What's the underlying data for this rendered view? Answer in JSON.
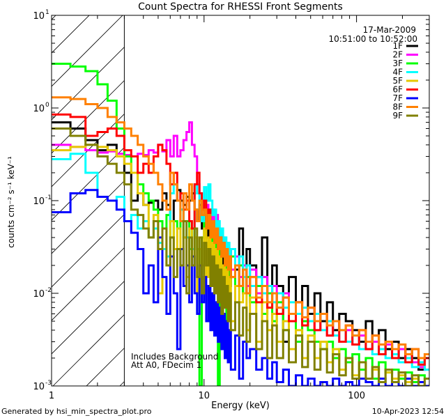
{
  "chart_data": {
    "type": "line",
    "title": "Count Spectra for RHESSI Front Segments",
    "xlabel": "Energy (keV)",
    "ylabel": "counts cm⁻² s⁻¹ keV⁻¹",
    "xscale": "log",
    "yscale": "log",
    "xlim": [
      1,
      300
    ],
    "ylim": [
      0.001,
      10
    ],
    "x_ticks": [
      {
        "value": 1,
        "label": "1"
      },
      {
        "value": 10,
        "label": "10"
      },
      {
        "value": 100,
        "label": "100"
      }
    ],
    "y_ticks": [
      {
        "value": 10,
        "base": "10",
        "exp": "1"
      },
      {
        "value": 1,
        "base": "10",
        "exp": "0"
      },
      {
        "value": 0.1,
        "base": "10",
        "exp": "-1"
      },
      {
        "value": 0.01,
        "base": "10",
        "exp": "-2"
      },
      {
        "value": 0.001,
        "base": "10",
        "exp": "-3"
      }
    ],
    "date": "17-Mar-2009",
    "time_range": "10:51:00 to 10:52:00",
    "attenuated_region_max_keV": 3,
    "notes": [
      "Includes Background",
      "Att A0, FDecim 1"
    ],
    "legend_position": "top-right",
    "energy_edges": [
      1.0,
      1.33,
      1.67,
      2.0,
      2.33,
      2.67,
      3.0,
      3.33,
      3.67,
      4.0,
      4.33,
      4.67,
      5.0,
      5.33,
      5.67,
      6.0,
      6.33,
      6.67,
      7.0,
      7.33,
      7.67,
      8.0,
      8.33,
      8.67,
      9.0,
      9.33,
      9.67,
      10.0,
      10.33,
      10.67,
      11.0,
      11.33,
      11.67,
      12.0,
      12.33,
      12.67,
      13.0,
      13.33,
      13.67,
      14.0,
      14.33,
      14.67,
      15.0,
      16.0,
      17.0,
      18.0,
      19.0,
      20.0,
      22.0,
      24.0,
      26.0,
      28.0,
      30.0,
      33.0,
      36.0,
      40.0,
      44.0,
      48.0,
      53.0,
      58.0,
      64.0,
      70.0,
      77.0,
      85.0,
      94.0,
      104.0,
      115.0,
      127.0,
      140.0,
      155.0,
      171.0,
      189.0,
      209.0,
      231.0,
      255.0,
      280.0,
      300.0
    ],
    "series": [
      {
        "name": "1F",
        "color": "#000000",
        "values": [
          0.7,
          0.6,
          0.45,
          0.35,
          0.4,
          0.3,
          0.2,
          0.1,
          0.12,
          0.09,
          0.095,
          0.1,
          0.08,
          0.12,
          0.09,
          0.06,
          0.1,
          0.13,
          0.1,
          0.09,
          0.11,
          0.1,
          0.12,
          0.08,
          0.06,
          0.09,
          0.05,
          0.07,
          0.04,
          0.06,
          0.03,
          0.05,
          0.02,
          0.045,
          0.03,
          0.04,
          0.02,
          0.03,
          0.015,
          0.025,
          0.02,
          0.012,
          0.03,
          0.018,
          0.05,
          0.01,
          0.03,
          0.02,
          0.015,
          0.04,
          0.01,
          0.02,
          0.012,
          0.003,
          0.015,
          0.008,
          0.012,
          0.006,
          0.01,
          0.005,
          0.008,
          0.004,
          0.006,
          0.005,
          0.004,
          0.003,
          0.005,
          0.003,
          0.004,
          0.0025,
          0.003,
          0.002,
          0.0025,
          0.002,
          0.0015,
          0.002
        ]
      },
      {
        "name": "2F",
        "color": "#ff00ff",
        "values": [
          0.4,
          0.38,
          0.35,
          0.33,
          0.34,
          0.32,
          0.31,
          0.3,
          0.32,
          0.31,
          0.35,
          0.33,
          0.4,
          0.34,
          0.45,
          0.3,
          0.5,
          0.3,
          0.35,
          0.45,
          0.55,
          0.7,
          0.4,
          0.3,
          0.15,
          0.12,
          0.1,
          0.08,
          0.09,
          0.07,
          0.06,
          0.08,
          0.05,
          0.07,
          0.04,
          0.05,
          0.03,
          0.04,
          0.025,
          0.035,
          0.02,
          0.03,
          0.018,
          0.025,
          0.015,
          0.02,
          0.012,
          0.018,
          0.01,
          0.015,
          0.008,
          0.012,
          0.007,
          0.01,
          0.006,
          0.008,
          0.005,
          0.007,
          0.004,
          0.006,
          0.0035,
          0.005,
          0.003,
          0.004,
          0.0028,
          0.0035,
          0.0025,
          0.003,
          0.0022,
          0.0028,
          0.002,
          0.0025,
          0.002,
          0.0018,
          0.0016,
          0.0015
        ]
      },
      {
        "name": "3F",
        "color": "#00ff00",
        "values": [
          3.0,
          2.8,
          2.5,
          1.8,
          1.2,
          0.6,
          0.3,
          0.2,
          0.15,
          0.12,
          0.1,
          0.08,
          0.06,
          0.05,
          0.07,
          0.04,
          0.06,
          0.05,
          0.08,
          0.04,
          0.06,
          0.03,
          0.05,
          0.04,
          0.03,
          0.001,
          0.04,
          0.06,
          0.05,
          0.08,
          0.03,
          0.06,
          0.02,
          0.05,
          0.001,
          0.04,
          0.03,
          0.025,
          0.02,
          0.002,
          0.03,
          0.015,
          0.025,
          0.012,
          0.02,
          0.01,
          0.015,
          0.008,
          0.012,
          0.006,
          0.01,
          0.005,
          0.008,
          0.004,
          0.006,
          0.003,
          0.005,
          0.004,
          0.003,
          0.0025,
          0.003,
          0.002,
          0.0025,
          0.0018,
          0.0022,
          0.0015,
          0.002,
          0.0012,
          0.0018,
          0.0014,
          0.0015,
          0.0012,
          0.0014,
          0.0011,
          0.0013,
          0.0012
        ]
      },
      {
        "name": "4F",
        "color": "#00ffff",
        "values": [
          0.28,
          0.32,
          0.2,
          0.11,
          0.1,
          0.11,
          0.06,
          0.07,
          0.05,
          0.06,
          0.04,
          0.05,
          0.035,
          0.03,
          0.025,
          0.12,
          0.15,
          0.1,
          0.08,
          0.06,
          0.04,
          0.05,
          0.03,
          0.15,
          0.12,
          0.08,
          0.06,
          0.14,
          0.1,
          0.15,
          0.1,
          0.07,
          0.08,
          0.05,
          0.06,
          0.04,
          0.05,
          0.035,
          0.04,
          0.03,
          0.035,
          0.025,
          0.03,
          0.02,
          0.025,
          0.015,
          0.02,
          0.012,
          0.015,
          0.01,
          0.012,
          0.008,
          0.01,
          0.007,
          0.008,
          0.006,
          0.007,
          0.005,
          0.006,
          0.004,
          0.005,
          0.0035,
          0.004,
          0.003,
          0.0035,
          0.0025,
          0.003,
          0.0022,
          0.0025,
          0.002,
          0.0022,
          0.0018,
          0.002,
          0.0016,
          0.0018,
          0.0015
        ]
      },
      {
        "name": "5F",
        "color": "#e6c800",
        "values": [
          0.35,
          0.38,
          0.4,
          0.38,
          0.35,
          0.3,
          0.25,
          0.2,
          0.12,
          0.09,
          0.04,
          0.07,
          0.01,
          0.05,
          0.02,
          0.06,
          0.03,
          0.05,
          0.02,
          0.04,
          0.015,
          0.05,
          0.02,
          0.04,
          0.01,
          0.03,
          0.02,
          0.05,
          0.015,
          0.04,
          0.02,
          0.035,
          0.012,
          0.03,
          0.01,
          0.025,
          0.008,
          0.02,
          0.01,
          0.018,
          0.006,
          0.015,
          0.005,
          0.012,
          0.008,
          0.01,
          0.004,
          0.009,
          0.003,
          0.008,
          0.004,
          0.006,
          0.003,
          0.005,
          0.0025,
          0.004,
          0.002,
          0.0035,
          0.002,
          0.003,
          0.0018,
          0.0025,
          0.0015,
          0.002,
          0.0013,
          0.0018,
          0.0012,
          0.0015,
          0.0011,
          0.0014,
          0.0012,
          0.0013,
          0.0011,
          0.0012,
          0.0011,
          0.001
        ]
      },
      {
        "name": "6F",
        "color": "#ff0000",
        "values": [
          0.85,
          0.8,
          0.5,
          0.55,
          0.6,
          0.5,
          0.35,
          0.3,
          0.2,
          0.25,
          0.2,
          0.3,
          0.4,
          0.35,
          0.25,
          0.15,
          0.2,
          0.1,
          0.12,
          0.08,
          0.1,
          0.06,
          0.05,
          0.15,
          0.2,
          0.12,
          0.08,
          0.1,
          0.06,
          0.08,
          0.05,
          0.06,
          0.04,
          0.05,
          0.03,
          0.04,
          0.025,
          0.035,
          0.02,
          0.03,
          0.018,
          0.025,
          0.015,
          0.02,
          0.012,
          0.018,
          0.01,
          0.015,
          0.008,
          0.012,
          0.007,
          0.01,
          0.006,
          0.009,
          0.005,
          0.008,
          0.0045,
          0.007,
          0.004,
          0.006,
          0.0035,
          0.005,
          0.003,
          0.0045,
          0.0028,
          0.004,
          0.0025,
          0.0035,
          0.0022,
          0.003,
          0.002,
          0.0028,
          0.0018,
          0.0025,
          0.0017,
          0.002
        ]
      },
      {
        "name": "7F",
        "color": "#0000ff",
        "values": [
          0.075,
          0.12,
          0.13,
          0.11,
          0.1,
          0.08,
          0.06,
          0.045,
          0.03,
          0.01,
          0.02,
          0.008,
          0.04,
          0.015,
          0.006,
          0.025,
          0.01,
          0.0025,
          0.03,
          0.012,
          0.02,
          0.008,
          0.025,
          0.01,
          0.006,
          0.02,
          0.008,
          0.015,
          0.005,
          0.012,
          0.004,
          0.01,
          0.0035,
          0.008,
          0.003,
          0.007,
          0.0025,
          0.006,
          0.002,
          0.005,
          0.0018,
          0.004,
          0.0015,
          0.0035,
          0.0012,
          0.003,
          0.002,
          0.0025,
          0.0015,
          0.002,
          0.0012,
          0.0018,
          0.0011,
          0.0015,
          0.001,
          0.0013,
          0.001,
          0.0012,
          0.001,
          0.0011,
          0.001,
          0.0012,
          0.001,
          0.0011,
          0.001,
          0.0012,
          0.0011,
          0.001,
          0.0012,
          0.001,
          0.0011,
          0.001,
          0.0012,
          0.001,
          0.0011,
          0.001
        ]
      },
      {
        "name": "8F",
        "color": "#ff8000",
        "values": [
          1.3,
          1.25,
          1.1,
          1.0,
          0.8,
          0.7,
          0.6,
          0.5,
          0.4,
          0.3,
          0.25,
          0.2,
          0.15,
          0.1,
          0.08,
          0.2,
          0.15,
          0.1,
          0.06,
          0.12,
          0.08,
          0.15,
          0.1,
          0.08,
          0.06,
          0.1,
          0.07,
          0.08,
          0.05,
          0.07,
          0.04,
          0.06,
          0.035,
          0.05,
          0.03,
          0.04,
          0.025,
          0.035,
          0.02,
          0.03,
          0.018,
          0.025,
          0.015,
          0.02,
          0.012,
          0.018,
          0.01,
          0.015,
          0.009,
          0.012,
          0.008,
          0.01,
          0.007,
          0.009,
          0.006,
          0.008,
          0.0055,
          0.007,
          0.005,
          0.006,
          0.0045,
          0.005,
          0.004,
          0.0045,
          0.0035,
          0.004,
          0.003,
          0.0035,
          0.0028,
          0.003,
          0.0025,
          0.0028,
          0.0022,
          0.0025,
          0.002,
          0.0022
        ]
      },
      {
        "name": "9F",
        "color": "#808000",
        "values": [
          0.6,
          0.5,
          0.4,
          0.3,
          0.25,
          0.2,
          0.15,
          0.08,
          0.07,
          0.05,
          0.04,
          0.06,
          0.03,
          0.05,
          0.02,
          0.04,
          0.015,
          0.03,
          0.02,
          0.06,
          0.01,
          0.04,
          0.02,
          0.05,
          0.015,
          0.04,
          0.01,
          0.035,
          0.02,
          0.03,
          0.012,
          0.025,
          0.01,
          0.02,
          0.008,
          0.018,
          0.006,
          0.015,
          0.007,
          0.012,
          0.005,
          0.01,
          0.004,
          0.008,
          0.0035,
          0.007,
          0.003,
          0.006,
          0.0025,
          0.005,
          0.002,
          0.0045,
          0.002,
          0.004,
          0.0018,
          0.0035,
          0.0016,
          0.003,
          0.0015,
          0.0025,
          0.0014,
          0.0022,
          0.0013,
          0.002,
          0.0012,
          0.0018,
          0.0012,
          0.0016,
          0.0011,
          0.0015,
          0.0011,
          0.0014,
          0.001,
          0.0013,
          0.001,
          0.0012
        ]
      }
    ]
  },
  "footer": {
    "generated_by": "Generated by hsi_min_spectra_plot.pro",
    "timestamp": "10-Apr-2023 12:54"
  }
}
